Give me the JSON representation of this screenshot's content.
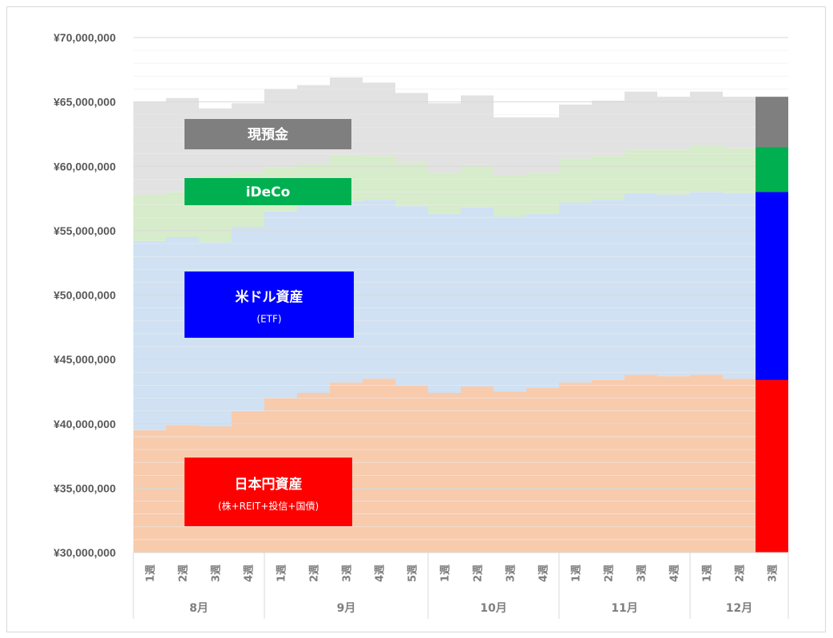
{
  "chart_data": {
    "type": "area",
    "stacked": true,
    "ylim": [
      30000000,
      70000000
    ],
    "y_ticks": [
      "¥30,000,000",
      "¥35,000,000",
      "¥40,000,000",
      "¥45,000,000",
      "¥50,000,000",
      "¥55,000,000",
      "¥60,000,000",
      "¥65,000,000",
      "¥70,000,000"
    ],
    "y_tick_values": [
      30000000,
      35000000,
      40000000,
      45000000,
      50000000,
      55000000,
      60000000,
      65000000,
      70000000
    ],
    "weeks": [
      "1週",
      "2週",
      "3週",
      "4週",
      "1週",
      "2週",
      "3週",
      "4週",
      "5週",
      "1週",
      "2週",
      "3週",
      "4週",
      "1週",
      "2週",
      "3週",
      "4週",
      "1週",
      "2週",
      "3週"
    ],
    "months": [
      {
        "label": "8月",
        "count": 4
      },
      {
        "label": "9月",
        "count": 5
      },
      {
        "label": "10月",
        "count": 4
      },
      {
        "label": "11月",
        "count": 4
      },
      {
        "label": "12月",
        "count": 3
      }
    ],
    "grid": true,
    "series": [
      {
        "name": "日本円資産",
        "subtitle": "(株+REIT+投信+国債)",
        "color": "#f8cbad",
        "latest_color": "#ff0000",
        "cumulative": [
          39500000,
          39900000,
          39800000,
          41000000,
          42000000,
          42400000,
          43200000,
          43500000,
          43000000,
          42400000,
          42900000,
          42500000,
          42800000,
          43200000,
          43400000,
          43800000,
          43700000,
          43800000,
          43500000,
          43400000
        ]
      },
      {
        "name": "米ドル資産",
        "subtitle": "(ETF)",
        "color": "#cfe1f3",
        "latest_color": "#0000ff",
        "cumulative": [
          54200000,
          54500000,
          54100000,
          55300000,
          56500000,
          57000000,
          57300000,
          57400000,
          56900000,
          56300000,
          56800000,
          56100000,
          56300000,
          57200000,
          57400000,
          57900000,
          57800000,
          58000000,
          57900000,
          58000000
        ]
      },
      {
        "name": "iDeCo",
        "subtitle": "",
        "color": "#d6ecca",
        "latest_color": "#00b050",
        "cumulative": [
          57800000,
          58000000,
          59300000,
          59500000,
          59900000,
          60200000,
          60900000,
          60800000,
          60300000,
          59500000,
          60100000,
          59300000,
          59500000,
          60600000,
          60800000,
          61300000,
          61300000,
          61600000,
          61400000,
          61500000
        ]
      },
      {
        "name": "現預金",
        "subtitle": "",
        "color": "#e2e2e2",
        "latest_color": "#7f7f7f",
        "cumulative": [
          65000000,
          65300000,
          64500000,
          64900000,
          66000000,
          66300000,
          66900000,
          66500000,
          65700000,
          64900000,
          65500000,
          63800000,
          63800000,
          64800000,
          65100000,
          65800000,
          65400000,
          65800000,
          65400000,
          65400000
        ]
      }
    ]
  }
}
